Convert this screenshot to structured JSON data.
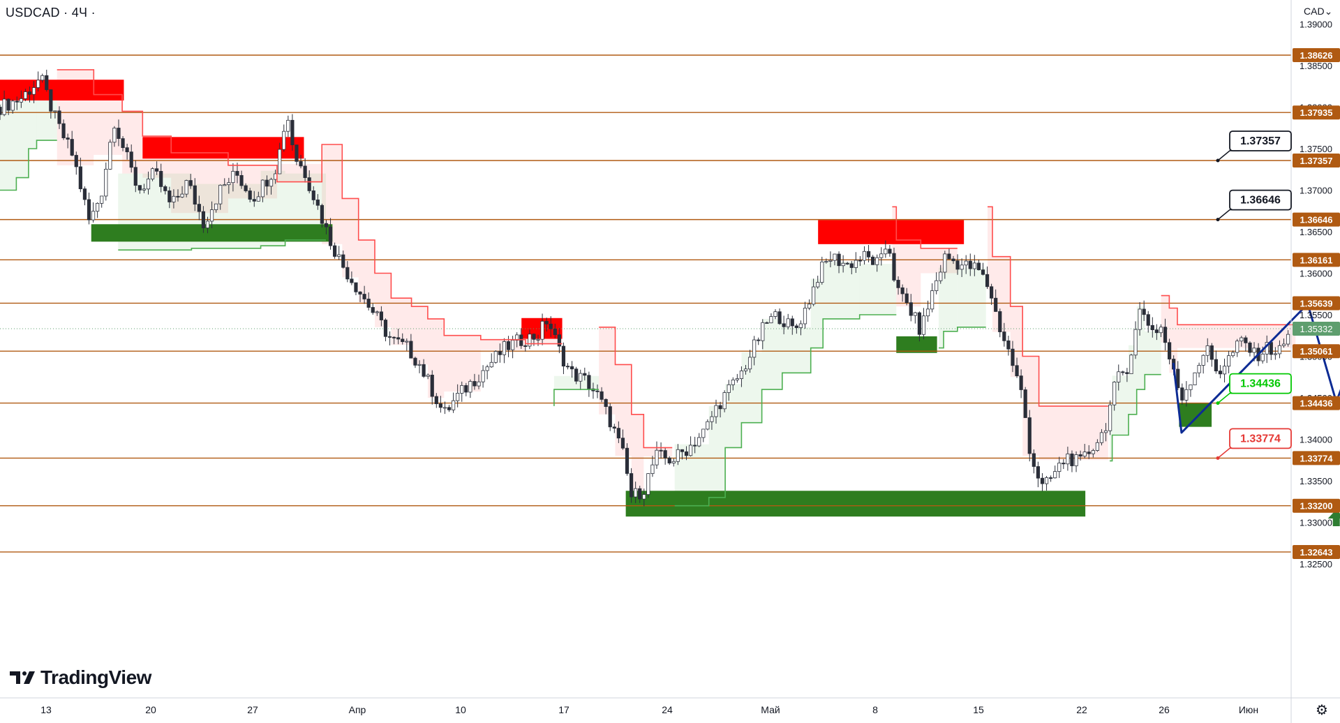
{
  "header": {
    "symbol_line": "USDCAD · 4Ч ·"
  },
  "currency": {
    "label": "CAD",
    "chevron": "⌄"
  },
  "logo": {
    "text": "TradingView"
  },
  "settings": {
    "icon": "gear-icon",
    "glyph": "⚙"
  },
  "colors": {
    "level": "#b05a12",
    "supply": "#ff0000",
    "demand": "#2e7d1f",
    "trail_down": "#ff4d4d",
    "trail_up": "#4caf50",
    "projection": "#0d2b94",
    "target_up": "#00c800",
    "target_down": "#e53935",
    "price_badge": "#5e9e6e"
  },
  "chart_data": {
    "type": "candlestick",
    "symbol": "USDCAD",
    "timeframe": "4Ч",
    "ylim": [
      1.3225,
      1.3935
    ],
    "y_ticks": [
      1.39,
      1.385,
      1.38,
      1.375,
      1.37,
      1.365,
      1.36,
      1.355,
      1.35,
      1.345,
      1.34,
      1.335,
      1.33,
      1.325
    ],
    "y_tick_labels": [
      "1.39000",
      "1.38500",
      "1.38000",
      "1.37500",
      "1.37000",
      "1.36500",
      "1.36000",
      "1.35500",
      "1.35000",
      "1.34500",
      "1.34000",
      "1.33500",
      "1.33000",
      "1.32500"
    ],
    "x_ticks": [
      "13",
      "20",
      "27",
      "Апр",
      "10",
      "17",
      "24",
      "Май",
      "8",
      "15",
      "22",
      "26",
      "Июн"
    ],
    "levels": [
      {
        "value": 1.38626,
        "label": "1.38626"
      },
      {
        "value": 1.37935,
        "label": "1.37935"
      },
      {
        "value": 1.37357,
        "label": "1.37357"
      },
      {
        "value": 1.36646,
        "label": "1.36646"
      },
      {
        "value": 1.36161,
        "label": "1.36161"
      },
      {
        "value": 1.35639,
        "label": "1.35639"
      },
      {
        "value": 1.35061,
        "label": "1.35061"
      },
      {
        "value": 1.34436,
        "label": "1.34436"
      },
      {
        "value": 1.33774,
        "label": "1.33774"
      },
      {
        "value": 1.332,
        "label": "1.33200"
      },
      {
        "value": 1.32643,
        "label": "1.32643"
      }
    ],
    "last_price": {
      "value": 1.35332,
      "label": "1.35332"
    },
    "callouts": [
      {
        "value": 1.37357,
        "label": "1.37357",
        "kind": "target"
      },
      {
        "value": 1.36646,
        "label": "1.36646",
        "kind": "target"
      },
      {
        "value": 1.34436,
        "label": "1.34436",
        "kind": "entry"
      },
      {
        "value": 1.33774,
        "label": "1.33774",
        "kind": "stop"
      }
    ],
    "supply_zones": [
      {
        "x": [
          0,
          152
        ],
        "y": [
          1.3808,
          1.3833
        ]
      },
      {
        "x": [
          175,
          373
        ],
        "y": [
          1.3738,
          1.3764
        ]
      },
      {
        "x": [
          640,
          690
        ],
        "y": [
          1.3521,
          1.3546
        ]
      },
      {
        "x": [
          1004,
          1183
        ],
        "y": [
          1.3635,
          1.3664
        ]
      }
    ],
    "demand_zones": [
      {
        "x": [
          112,
          408
        ],
        "y": [
          1.3638,
          1.3659
        ]
      },
      {
        "x": [
          1100,
          1150
        ],
        "y": [
          1.3504,
          1.3524
        ]
      },
      {
        "x": [
          1447,
          1487
        ],
        "y": [
          1.3415,
          1.3444
        ]
      },
      {
        "x": [
          768,
          1332
        ],
        "y": [
          1.3307,
          1.3338
        ]
      }
    ],
    "price_path": [
      [
        0,
        1.38
      ],
      [
        25,
        1.381
      ],
      [
        50,
        1.3835
      ],
      [
        70,
        1.378
      ],
      [
        90,
        1.374
      ],
      [
        110,
        1.366
      ],
      [
        125,
        1.37
      ],
      [
        140,
        1.3785
      ],
      [
        155,
        1.374
      ],
      [
        170,
        1.37
      ],
      [
        190,
        1.372
      ],
      [
        210,
        1.368
      ],
      [
        230,
        1.371
      ],
      [
        250,
        1.366
      ],
      [
        270,
        1.37
      ],
      [
        290,
        1.372
      ],
      [
        310,
        1.369
      ],
      [
        325,
        1.371
      ],
      [
        340,
        1.373
      ],
      [
        352,
        1.3795
      ],
      [
        362,
        1.374
      ],
      [
        375,
        1.372
      ],
      [
        390,
        1.368
      ],
      [
        405,
        1.364
      ],
      [
        420,
        1.361
      ],
      [
        440,
        1.358
      ],
      [
        460,
        1.355
      ],
      [
        480,
        1.352
      ],
      [
        500,
        1.351
      ],
      [
        515,
        1.349
      ],
      [
        530,
        1.346
      ],
      [
        545,
        1.343
      ],
      [
        560,
        1.345
      ],
      [
        580,
        1.347
      ],
      [
        600,
        1.349
      ],
      [
        620,
        1.351
      ],
      [
        640,
        1.352
      ],
      [
        660,
        1.3525
      ],
      [
        672,
        1.3545
      ],
      [
        685,
        1.351
      ],
      [
        700,
        1.348
      ],
      [
        720,
        1.347
      ],
      [
        735,
        1.345
      ],
      [
        750,
        1.342
      ],
      [
        765,
        1.338
      ],
      [
        775,
        1.333
      ],
      [
        790,
        1.334
      ],
      [
        805,
        1.338
      ],
      [
        825,
        1.3375
      ],
      [
        845,
        1.339
      ],
      [
        865,
        1.341
      ],
      [
        880,
        1.344
      ],
      [
        895,
        1.346
      ],
      [
        910,
        1.348
      ],
      [
        925,
        1.351
      ],
      [
        940,
        1.354
      ],
      [
        955,
        1.355
      ],
      [
        975,
        1.353
      ],
      [
        990,
        1.356
      ],
      [
        1005,
        1.36
      ],
      [
        1020,
        1.362
      ],
      [
        1040,
        1.361
      ],
      [
        1060,
        1.362
      ],
      [
        1080,
        1.361
      ],
      [
        1090,
        1.364
      ],
      [
        1100,
        1.358
      ],
      [
        1115,
        1.356
      ],
      [
        1130,
        1.353
      ],
      [
        1145,
        1.358
      ],
      [
        1160,
        1.362
      ],
      [
        1180,
        1.361
      ],
      [
        1200,
        1.3605
      ],
      [
        1215,
        1.358
      ],
      [
        1225,
        1.354
      ],
      [
        1240,
        1.35
      ],
      [
        1255,
        1.345
      ],
      [
        1265,
        1.338
      ],
      [
        1280,
        1.334
      ],
      [
        1295,
        1.336
      ],
      [
        1310,
        1.338
      ],
      [
        1325,
        1.337
      ],
      [
        1340,
        1.339
      ],
      [
        1355,
        1.341
      ],
      [
        1370,
        1.347
      ],
      [
        1385,
        1.349
      ],
      [
        1400,
        1.356
      ],
      [
        1415,
        1.353
      ],
      [
        1425,
        1.3535
      ],
      [
        1440,
        1.348
      ],
      [
        1450,
        1.345
      ],
      [
        1465,
        1.348
      ],
      [
        1480,
        1.351
      ],
      [
        1495,
        1.348
      ],
      [
        1510,
        1.35
      ],
      [
        1525,
        1.352
      ],
      [
        1540,
        1.35
      ],
      [
        1555,
        1.351
      ],
      [
        1570,
        1.3505
      ],
      [
        1585,
        1.3533
      ]
    ],
    "trail_down": [
      [
        70,
        1.3845
      ],
      [
        115,
        1.3845
      ],
      [
        115,
        1.3815
      ],
      [
        150,
        1.3815
      ],
      [
        150,
        1.3795
      ],
      [
        175,
        1.3795
      ],
      [
        175,
        1.3765
      ],
      [
        210,
        1.3765
      ],
      [
        210,
        1.3745
      ],
      [
        280,
        1.3745
      ],
      [
        280,
        1.373
      ],
      [
        340,
        1.373
      ],
      [
        340,
        1.371
      ],
      [
        395,
        1.371
      ],
      [
        395,
        1.3755
      ],
      [
        420,
        1.3755
      ],
      [
        420,
        1.369
      ],
      [
        440,
        1.369
      ],
      [
        440,
        1.364
      ],
      [
        460,
        1.364
      ],
      [
        460,
        1.36
      ],
      [
        480,
        1.36
      ],
      [
        480,
        1.357
      ],
      [
        505,
        1.357
      ],
      [
        505,
        1.356
      ],
      [
        525,
        1.356
      ],
      [
        525,
        1.3545
      ],
      [
        545,
        1.3545
      ],
      [
        545,
        1.3525
      ],
      [
        590,
        1.3525
      ],
      [
        590,
        1.352
      ],
      [
        645,
        1.352
      ],
      [
        645,
        1.3515
      ],
      [
        690,
        1.3515
      ],
      [
        735,
        1.3535
      ],
      [
        755,
        1.3535
      ],
      [
        755,
        1.349
      ],
      [
        775,
        1.349
      ],
      [
        775,
        1.343
      ],
      [
        790,
        1.343
      ],
      [
        790,
        1.339
      ],
      [
        825,
        1.339
      ],
      [
        1095,
        1.368
      ],
      [
        1100,
        1.368
      ],
      [
        1100,
        1.364
      ],
      [
        1130,
        1.364
      ],
      [
        1130,
        1.363
      ],
      [
        1175,
        1.363
      ],
      [
        1212,
        1.368
      ],
      [
        1218,
        1.368
      ],
      [
        1218,
        1.362
      ],
      [
        1240,
        1.362
      ],
      [
        1240,
        1.356
      ],
      [
        1255,
        1.356
      ],
      [
        1255,
        1.35
      ],
      [
        1275,
        1.35
      ],
      [
        1275,
        1.344
      ],
      [
        1360,
        1.344
      ],
      [
        1425,
        1.3573
      ],
      [
        1435,
        1.3573
      ],
      [
        1435,
        1.3558
      ],
      [
        1445,
        1.3558
      ],
      [
        1445,
        1.3538
      ],
      [
        1590,
        1.3538
      ]
    ],
    "trail_up": [
      [
        0,
        1.37
      ],
      [
        20,
        1.37
      ],
      [
        20,
        1.3715
      ],
      [
        35,
        1.3715
      ],
      [
        35,
        1.375
      ],
      [
        45,
        1.375
      ],
      [
        45,
        1.376
      ],
      [
        70,
        1.376
      ],
      [
        145,
        1.3628
      ],
      [
        235,
        1.3628
      ],
      [
        235,
        1.363
      ],
      [
        320,
        1.363
      ],
      [
        320,
        1.3633
      ],
      [
        350,
        1.3633
      ],
      [
        350,
        1.364
      ],
      [
        400,
        1.364
      ],
      [
        680,
        1.344
      ],
      [
        680,
        1.346
      ],
      [
        735,
        1.346
      ],
      [
        828,
        1.332
      ],
      [
        870,
        1.332
      ],
      [
        870,
        1.333
      ],
      [
        890,
        1.333
      ],
      [
        890,
        1.339
      ],
      [
        910,
        1.339
      ],
      [
        910,
        1.342
      ],
      [
        935,
        1.342
      ],
      [
        935,
        1.346
      ],
      [
        960,
        1.346
      ],
      [
        960,
        1.348
      ],
      [
        995,
        1.348
      ],
      [
        995,
        1.351
      ],
      [
        1010,
        1.351
      ],
      [
        1010,
        1.3545
      ],
      [
        1055,
        1.3545
      ],
      [
        1055,
        1.355
      ],
      [
        1100,
        1.355
      ],
      [
        1152,
        1.351
      ],
      [
        1158,
        1.351
      ],
      [
        1158,
        1.353
      ],
      [
        1175,
        1.353
      ],
      [
        1175,
        1.3535
      ],
      [
        1210,
        1.3535
      ],
      [
        1362,
        1.3374
      ],
      [
        1365,
        1.3374
      ],
      [
        1365,
        1.3405
      ],
      [
        1385,
        1.3405
      ],
      [
        1385,
        1.343
      ],
      [
        1395,
        1.343
      ],
      [
        1395,
        1.346
      ],
      [
        1405,
        1.346
      ],
      [
        1405,
        1.3478
      ],
      [
        1425,
        1.3478
      ]
    ],
    "projection": [
      [
        1440,
        1.3492
      ],
      [
        1450,
        1.3408
      ],
      [
        1605,
        1.3563
      ],
      [
        1640,
        1.3445
      ],
      [
        1740,
        1.3707
      ],
      [
        1758,
        1.368
      ]
    ],
    "arrow_up_x": 1640,
    "stop_mark_x": 1722
  }
}
